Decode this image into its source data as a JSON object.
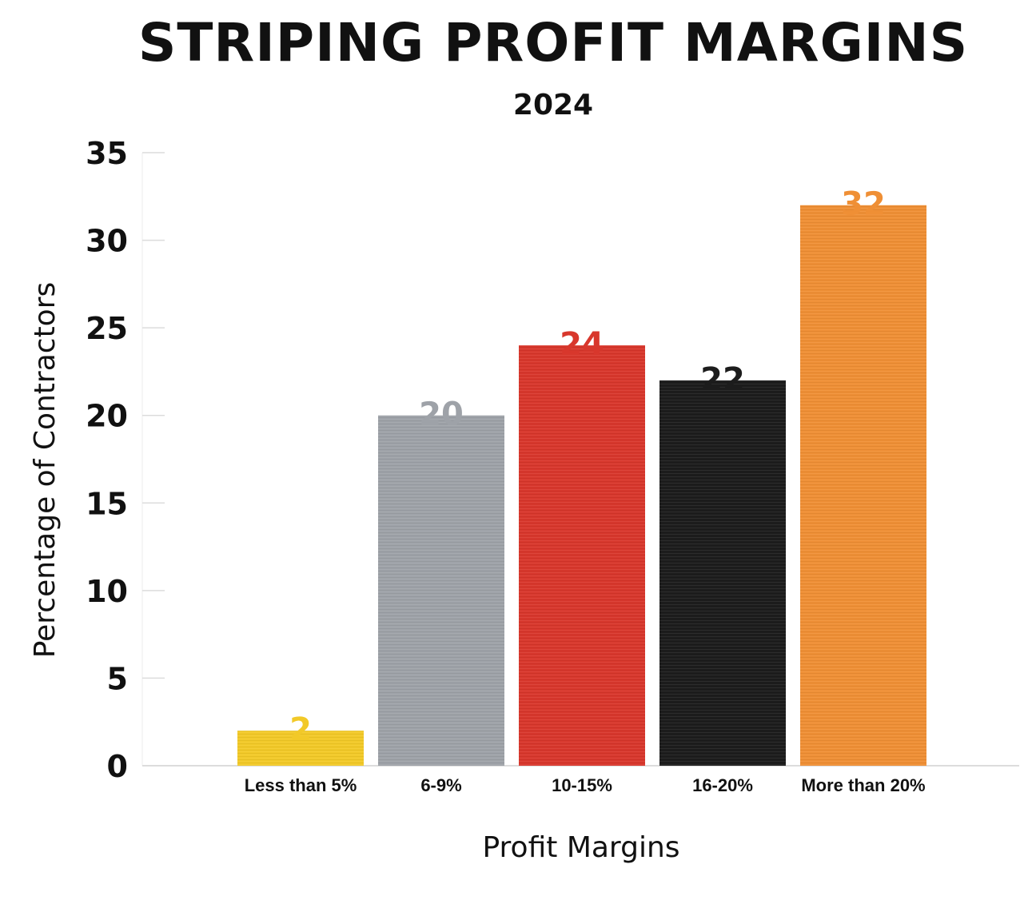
{
  "chart_data": {
    "type": "bar",
    "title": "STRIPING PROFIT MARGINS",
    "subtitle": "2024",
    "xlabel": "Profit Margins",
    "ylabel": "Percentage of Contractors",
    "categories": [
      "Less than 5%",
      "6-9%",
      "10-15%",
      "16-20%",
      "More than 20%"
    ],
    "values": [
      2,
      20,
      24,
      22,
      32
    ],
    "data_labels": [
      "2",
      "20",
      "24",
      "22",
      "32"
    ],
    "colors": [
      "#f2c928",
      "#9ea2a8",
      "#d8372c",
      "#1c1c1c",
      "#ef8f35"
    ],
    "ylim": [
      0,
      35
    ],
    "yticks": [
      "0",
      "5",
      "10",
      "15",
      "20",
      "25",
      "30",
      "35"
    ],
    "grid": false,
    "legend": "none"
  }
}
